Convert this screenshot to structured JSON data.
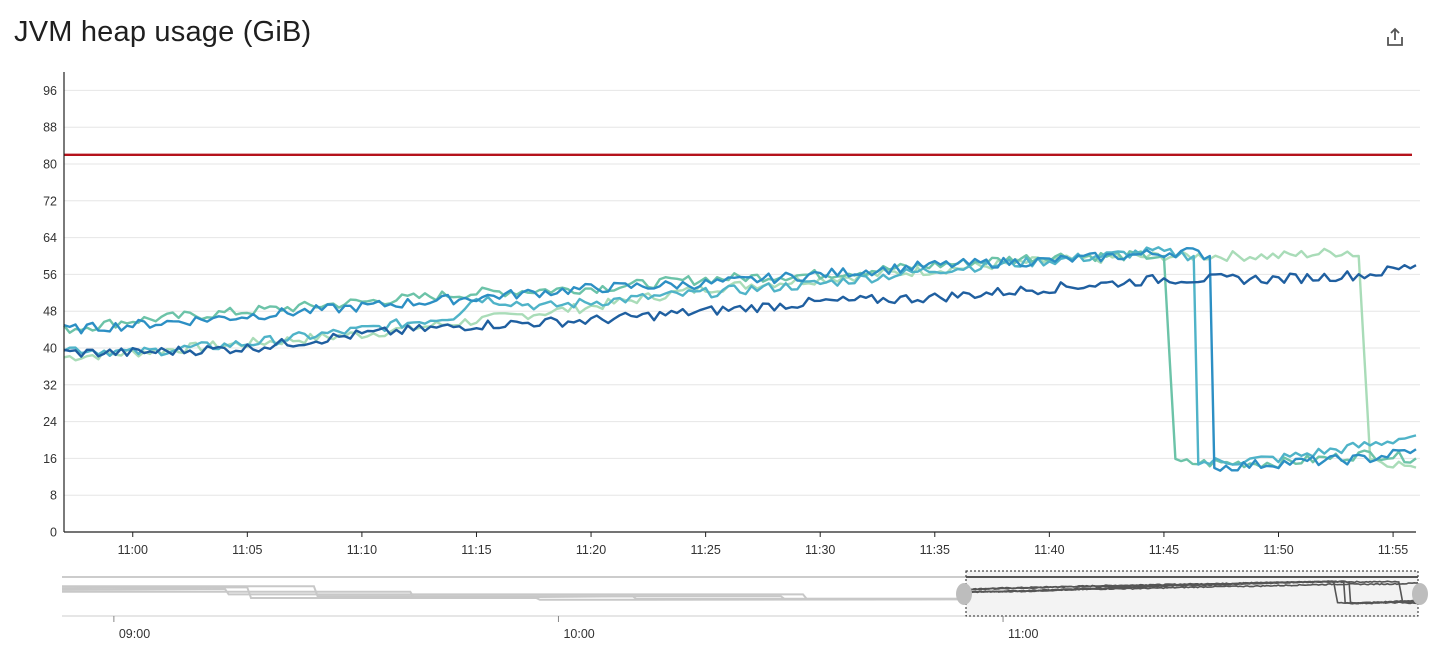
{
  "header": {
    "title": "JVM heap usage (GiB)",
    "share_icon": "share-icon"
  },
  "chart_data": {
    "type": "line",
    "title": "JVM heap usage (GiB)",
    "xlabel": "",
    "ylabel": "",
    "x_range": [
      "10:57",
      "11:56"
    ],
    "ylim": [
      0,
      100
    ],
    "y_ticks": [
      0,
      8,
      16,
      24,
      32,
      40,
      48,
      56,
      64,
      72,
      80,
      88,
      96
    ],
    "x_ticks": [
      "11:00",
      "11:05",
      "11:10",
      "11:15",
      "11:20",
      "11:25",
      "11:30",
      "11:35",
      "11:40",
      "11:45",
      "11:50",
      "11:55"
    ],
    "grid": true,
    "threshold": {
      "value": 82,
      "color": "#b5121b"
    },
    "series": [
      {
        "color": "#1f5fa0",
        "points": [
          [
            "10:57",
            39
          ],
          [
            "11:00",
            39
          ],
          [
            "11:05",
            40
          ],
          [
            "11:10",
            43
          ],
          [
            "11:15",
            45
          ],
          [
            "11:20",
            46
          ],
          [
            "11:25",
            48
          ],
          [
            "11:30",
            50
          ],
          [
            "11:35",
            51
          ],
          [
            "11:40",
            53
          ],
          [
            "11:45",
            55
          ],
          [
            "11:50",
            55
          ],
          [
            "11:54",
            56
          ],
          [
            "11:56",
            58
          ]
        ]
      },
      {
        "color": "#2c8fc4",
        "points": [
          [
            "10:57",
            44
          ],
          [
            "11:00",
            45
          ],
          [
            "11:05",
            47
          ],
          [
            "11:10",
            49
          ],
          [
            "11:15",
            51
          ],
          [
            "11:20",
            53
          ],
          [
            "11:25",
            54
          ],
          [
            "11:30",
            56
          ],
          [
            "11:35",
            58
          ],
          [
            "11:40",
            59
          ],
          [
            "11:46",
            61
          ],
          [
            "11:47",
            60
          ],
          [
            "11:47.2",
            14
          ],
          [
            "11:50",
            15
          ],
          [
            "11:54",
            16
          ],
          [
            "11:56",
            18
          ]
        ]
      },
      {
        "color": "#4fb3c8",
        "points": [
          [
            "10:57",
            40
          ],
          [
            "11:00",
            39
          ],
          [
            "11:05",
            41
          ],
          [
            "11:10",
            44
          ],
          [
            "11:14",
            47
          ],
          [
            "11:15",
            51
          ],
          [
            "11:18",
            49
          ],
          [
            "11:20",
            50
          ],
          [
            "11:25",
            52
          ],
          [
            "11:30",
            54
          ],
          [
            "11:35",
            57
          ],
          [
            "11:40",
            59
          ],
          [
            "11:44.5",
            61
          ],
          [
            "11:46.3",
            60
          ],
          [
            "11:46.5",
            15
          ],
          [
            "11:50",
            16
          ],
          [
            "11:54",
            19
          ],
          [
            "11:56",
            21
          ]
        ]
      },
      {
        "color": "#6cc3a8",
        "points": [
          [
            "10:57",
            44
          ],
          [
            "11:00",
            46
          ],
          [
            "11:05",
            48
          ],
          [
            "11:10",
            50
          ],
          [
            "11:15",
            52
          ],
          [
            "11:20",
            53
          ],
          [
            "11:25",
            55
          ],
          [
            "11:30",
            56
          ],
          [
            "11:35",
            58
          ],
          [
            "11:40",
            60
          ],
          [
            "11:45",
            60
          ],
          [
            "11:45.5",
            15
          ],
          [
            "11:50",
            15
          ],
          [
            "11:54",
            17
          ],
          [
            "11:56",
            16
          ]
        ]
      },
      {
        "color": "#a9dcb8",
        "points": [
          [
            "10:57",
            38
          ],
          [
            "11:00",
            39
          ],
          [
            "11:05",
            41
          ],
          [
            "11:10",
            43
          ],
          [
            "11:15",
            46
          ],
          [
            "11:20",
            49
          ],
          [
            "11:25",
            53
          ],
          [
            "11:30",
            55
          ],
          [
            "11:35",
            57
          ],
          [
            "11:40",
            59
          ],
          [
            "11:45",
            60
          ],
          [
            "11:50",
            60
          ],
          [
            "11:53",
            61
          ],
          [
            "11:53.5",
            60
          ],
          [
            "11:54",
            16
          ],
          [
            "11:56",
            14
          ]
        ]
      }
    ]
  },
  "overview": {
    "x_ticks": [
      "09:00",
      "10:00",
      "11:00"
    ]
  }
}
